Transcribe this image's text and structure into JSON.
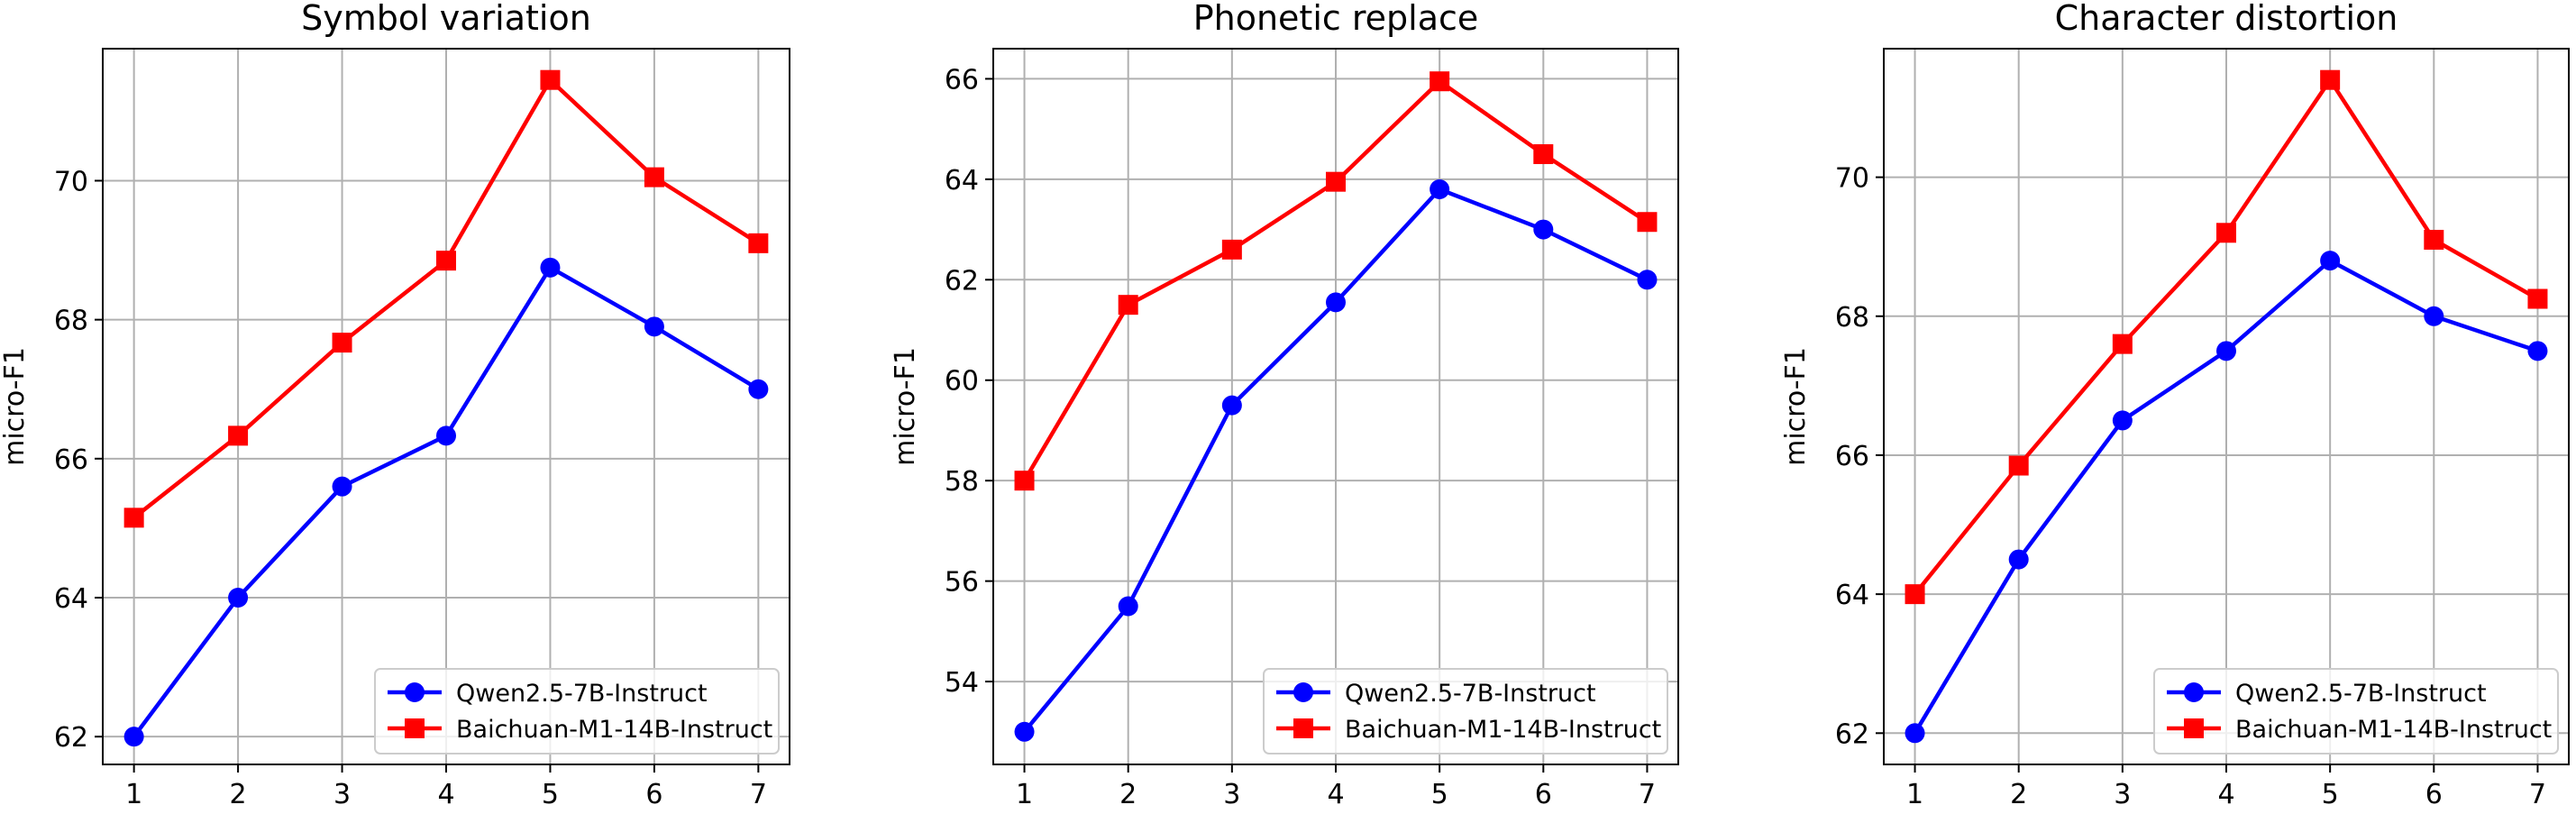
{
  "chart_data": [
    {
      "type": "line",
      "title": "Symbol variation",
      "xlabel": "",
      "ylabel": "micro-F1",
      "x": [
        1,
        2,
        3,
        4,
        5,
        6,
        7
      ],
      "xlim": [
        0.7,
        7.3
      ],
      "ylim": [
        61.6,
        71.9
      ],
      "yticks": [
        62,
        64,
        66,
        68,
        70
      ],
      "grid": true,
      "legend": "lower-right",
      "series": [
        {
          "name": "Qwen2.5-7B-Instruct",
          "color": "#0000ff",
          "marker": "circle",
          "values": [
            62.0,
            64.0,
            65.6,
            66.33,
            68.75,
            67.9,
            67.0
          ]
        },
        {
          "name": "Baichuan-M1-14B-Instruct",
          "color": "#ff0000",
          "marker": "square",
          "values": [
            65.15,
            66.33,
            67.67,
            68.85,
            71.45,
            70.05,
            69.1
          ]
        }
      ]
    },
    {
      "type": "line",
      "title": "Phonetic replace",
      "xlabel": "",
      "ylabel": "micro-F1",
      "x": [
        1,
        2,
        3,
        4,
        5,
        6,
        7
      ],
      "xlim": [
        0.7,
        7.3
      ],
      "ylim": [
        52.35,
        66.6
      ],
      "yticks": [
        54,
        56,
        58,
        60,
        62,
        64,
        66
      ],
      "grid": true,
      "legend": "lower-right",
      "series": [
        {
          "name": "Qwen2.5-7B-Instruct",
          "color": "#0000ff",
          "marker": "circle",
          "values": [
            53.0,
            55.5,
            59.5,
            61.55,
            63.8,
            63.0,
            62.0
          ]
        },
        {
          "name": "Baichuan-M1-14B-Instruct",
          "color": "#ff0000",
          "marker": "square",
          "values": [
            58.0,
            61.5,
            62.6,
            63.95,
            65.95,
            64.5,
            63.15
          ]
        }
      ]
    },
    {
      "type": "line",
      "title": "Character distortion",
      "xlabel": "",
      "ylabel": "micro-F1",
      "x": [
        1,
        2,
        3,
        4,
        5,
        6,
        7
      ],
      "xlim": [
        0.7,
        7.3
      ],
      "ylim": [
        61.55,
        71.85
      ],
      "yticks": [
        62,
        64,
        66,
        68,
        70
      ],
      "grid": true,
      "legend": "lower-right",
      "series": [
        {
          "name": "Qwen2.5-7B-Instruct",
          "color": "#0000ff",
          "marker": "circle",
          "values": [
            62.0,
            64.5,
            66.5,
            67.5,
            68.8,
            68.0,
            67.5
          ]
        },
        {
          "name": "Baichuan-M1-14B-Instruct",
          "color": "#ff0000",
          "marker": "square",
          "values": [
            64.0,
            65.85,
            67.6,
            69.2,
            71.4,
            69.1,
            68.25
          ]
        }
      ]
    }
  ]
}
